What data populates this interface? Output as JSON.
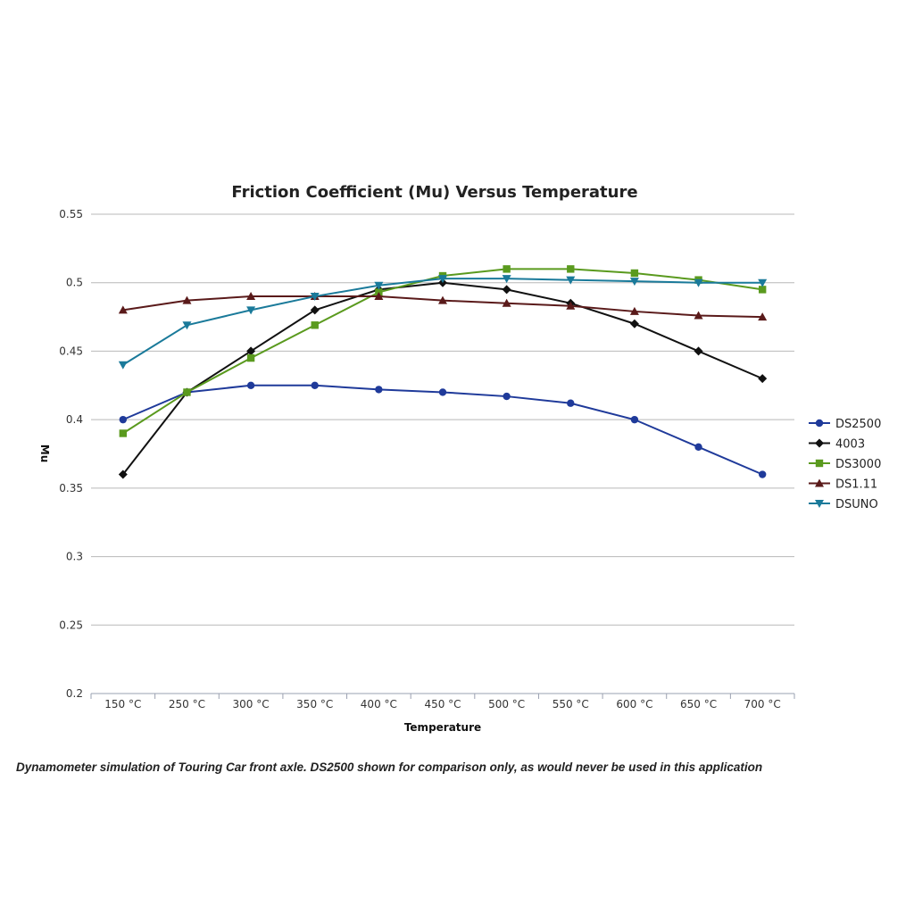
{
  "caption": "Dynamometer simulation of Touring Car front axle. DS2500 shown for comparison only, as would never be used in this application",
  "chart_data": {
    "type": "line",
    "title": "Friction Coefficient (Mu) Versus Temperature",
    "xlabel": "Temperature",
    "ylabel": "Mu",
    "categories": [
      "150 °C",
      "250 °C",
      "300 °C",
      "350 °C",
      "400 °C",
      "450 °C",
      "500 °C",
      "550 °C",
      "600 °C",
      "650 °C",
      "700 °C"
    ],
    "ylim": [
      0.2,
      0.55
    ],
    "yticks": [
      0.2,
      0.25,
      0.3,
      0.35,
      0.4,
      0.45,
      0.5,
      0.55
    ],
    "ytick_labels": [
      "0.2",
      "0.25",
      "0.3",
      "0.35",
      "0.4",
      "0.45",
      "0.5",
      "0.55"
    ],
    "grid": true,
    "legend_position": "right",
    "series": [
      {
        "name": "DS2500",
        "color": "#1f3a9a",
        "marker": "circle",
        "values": [
          0.4,
          0.42,
          0.425,
          0.425,
          0.422,
          0.42,
          0.417,
          0.412,
          0.4,
          0.38,
          0.36
        ]
      },
      {
        "name": "4003",
        "color": "#111111",
        "marker": "diamond",
        "values": [
          0.36,
          0.42,
          0.45,
          0.48,
          0.495,
          0.5,
          0.495,
          0.485,
          0.47,
          0.45,
          0.43
        ]
      },
      {
        "name": "DS3000",
        "color": "#5a9a1e",
        "marker": "square",
        "values": [
          0.39,
          0.42,
          0.445,
          0.469,
          0.493,
          0.505,
          0.51,
          0.51,
          0.507,
          0.502,
          0.495
        ]
      },
      {
        "name": "DS1.11",
        "color": "#5a1a1a",
        "marker": "triangle-up",
        "values": [
          0.48,
          0.487,
          0.49,
          0.49,
          0.49,
          0.487,
          0.485,
          0.483,
          0.479,
          0.476,
          0.475
        ]
      },
      {
        "name": "DSUNO",
        "color": "#1a7a9a",
        "marker": "triangle-down",
        "values": [
          0.44,
          0.469,
          0.48,
          0.49,
          0.498,
          0.503,
          0.503,
          0.502,
          0.501,
          0.5,
          0.5
        ]
      }
    ]
  }
}
